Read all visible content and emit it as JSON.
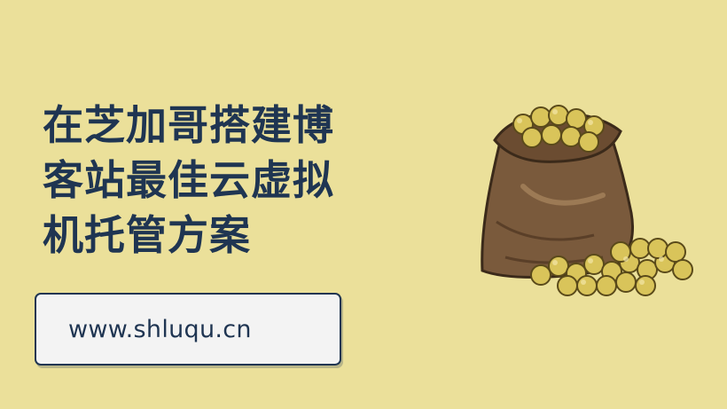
{
  "headline": {
    "line1": "在芝加哥搭建博",
    "line2": "客站最佳云虚拟",
    "line3": "机托管方案"
  },
  "url_box": {
    "text": "www.shluqu.cn"
  },
  "illustration": {
    "icon": "sack-of-soybeans-icon"
  },
  "colors": {
    "background": "#ebe09a",
    "text": "#1f3552",
    "sack": "#7a5a3c",
    "beans": "#d9c45a"
  }
}
